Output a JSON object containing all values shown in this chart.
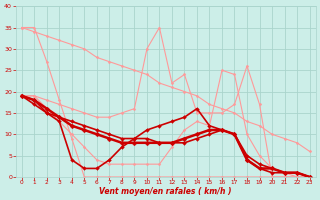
{
  "background_color": "#cceee8",
  "grid_color": "#aad4cc",
  "xlabel": "Vent moyen/en rafales ( km/h )",
  "xlabel_color": "#cc0000",
  "xlim": [
    -0.5,
    23.5
  ],
  "ylim": [
    0,
    40
  ],
  "yticks": [
    0,
    5,
    10,
    15,
    20,
    25,
    30,
    35,
    40
  ],
  "xticks": [
    0,
    1,
    2,
    3,
    4,
    5,
    6,
    7,
    8,
    9,
    10,
    11,
    12,
    13,
    14,
    15,
    16,
    17,
    18,
    19,
    20,
    21,
    22,
    23
  ],
  "series": [
    {
      "x": [
        0,
        1,
        2,
        3,
        4,
        5,
        6,
        7,
        8,
        9,
        10,
        11,
        12,
        13,
        14,
        15,
        16,
        17,
        18,
        19,
        20,
        21,
        22,
        23
      ],
      "y": [
        35,
        34,
        33,
        32,
        31,
        30,
        28,
        27,
        26,
        25,
        24,
        22,
        21,
        20,
        19,
        17,
        16,
        15,
        13,
        12,
        10,
        9,
        8,
        6
      ],
      "color": "#ff9999",
      "lw": 0.8,
      "marker": "D",
      "ms": 1.5
    },
    {
      "x": [
        0,
        1,
        2,
        3,
        4,
        5,
        6,
        7,
        8,
        9,
        10,
        11,
        12,
        13,
        14,
        15,
        16,
        17,
        18,
        19,
        20,
        21,
        22,
        23
      ],
      "y": [
        35,
        35,
        27,
        18,
        9,
        0,
        0,
        0,
        0,
        0,
        0,
        0,
        0,
        0,
        0,
        0,
        0,
        0,
        0,
        0,
        0,
        0,
        0,
        0
      ],
      "color": "#ff9999",
      "lw": 0.8,
      "marker": "D",
      "ms": 1.5
    },
    {
      "x": [
        0,
        1,
        2,
        3,
        4,
        5,
        6,
        7,
        8,
        9,
        10,
        11,
        12,
        13,
        14,
        15,
        16,
        17,
        18,
        19,
        20,
        21,
        22,
        23
      ],
      "y": [
        19,
        19,
        18,
        17,
        16,
        15,
        14,
        14,
        15,
        16,
        30,
        35,
        22,
        24,
        15,
        15,
        15,
        17,
        26,
        17,
        0,
        0,
        0,
        0
      ],
      "color": "#ff9999",
      "lw": 0.8,
      "marker": "D",
      "ms": 1.5
    },
    {
      "x": [
        0,
        1,
        2,
        3,
        4,
        5,
        6,
        7,
        8,
        9,
        10,
        11,
        12,
        13,
        14,
        15,
        16,
        17,
        18,
        19,
        20,
        21,
        22,
        23
      ],
      "y": [
        19,
        19,
        16,
        13,
        10,
        7,
        4,
        3,
        3,
        3,
        3,
        3,
        7,
        11,
        13,
        12,
        25,
        24,
        10,
        5,
        2,
        1,
        0,
        0
      ],
      "color": "#ff9999",
      "lw": 0.8,
      "marker": "D",
      "ms": 1.5
    },
    {
      "x": [
        0,
        1,
        2,
        3,
        4,
        5,
        6,
        7,
        8,
        9,
        10,
        11,
        12,
        13,
        14,
        15,
        16,
        17,
        18,
        19,
        20,
        21,
        22,
        23
      ],
      "y": [
        19,
        18,
        15,
        14,
        13,
        12,
        11,
        10,
        9,
        9,
        9,
        8,
        8,
        8,
        9,
        10,
        11,
        10,
        5,
        3,
        2,
        1,
        1,
        0
      ],
      "color": "#cc0000",
      "lw": 1.2,
      "marker": "D",
      "ms": 2.0
    },
    {
      "x": [
        0,
        1,
        2,
        3,
        4,
        5,
        6,
        7,
        8,
        9,
        10,
        11,
        12,
        13,
        14,
        15,
        16,
        17,
        18,
        19,
        20,
        21,
        22,
        23
      ],
      "y": [
        19,
        17,
        15,
        13,
        4,
        2,
        2,
        4,
        7,
        9,
        11,
        12,
        13,
        14,
        16,
        12,
        11,
        10,
        4,
        2,
        1,
        1,
        1,
        0
      ],
      "color": "#cc0000",
      "lw": 1.2,
      "marker": "D",
      "ms": 2.0
    },
    {
      "x": [
        0,
        1,
        2,
        3,
        4,
        5,
        6,
        7,
        8,
        9,
        10,
        11,
        12,
        13,
        14,
        15,
        16,
        17,
        18,
        19,
        20,
        21,
        22,
        23
      ],
      "y": [
        19,
        18,
        16,
        14,
        12,
        11,
        10,
        9,
        8,
        8,
        8,
        8,
        8,
        9,
        10,
        11,
        11,
        10,
        4,
        2,
        2,
        1,
        1,
        0
      ],
      "color": "#cc0000",
      "lw": 1.8,
      "marker": "D",
      "ms": 2.5
    }
  ]
}
